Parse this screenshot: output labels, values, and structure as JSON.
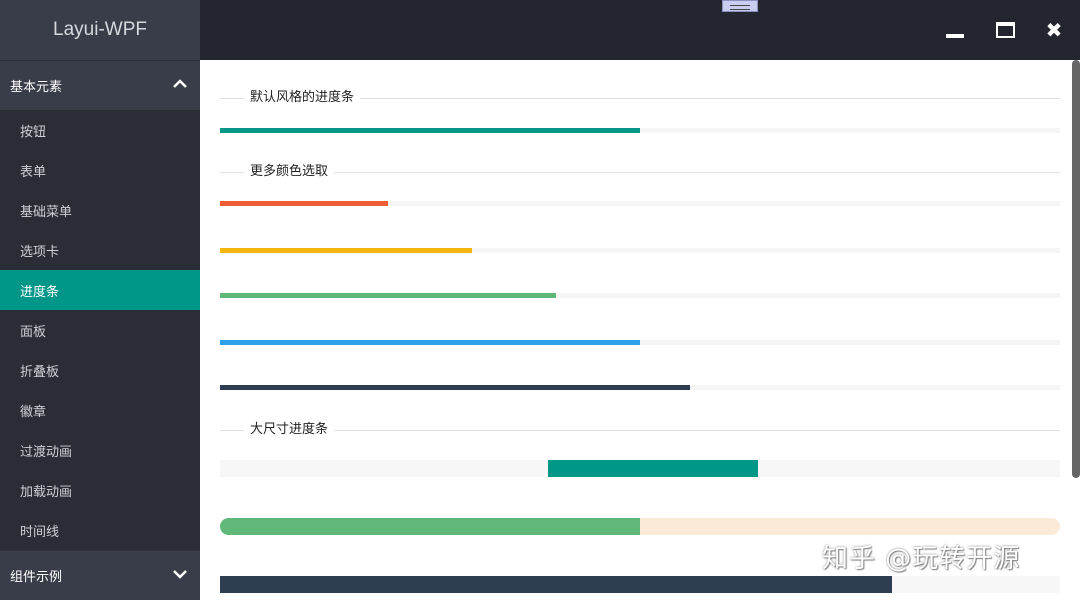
{
  "app": {
    "title": "Layui-WPF"
  },
  "sidebar": {
    "group": "基本元素",
    "items": [
      "按钮",
      "表单",
      "基础菜单",
      "选项卡",
      "进度条",
      "面板",
      "折叠板",
      "徽章",
      "过渡动画",
      "加载动画",
      "时间线"
    ],
    "active": "进度条",
    "group2": "组件示例"
  },
  "sections": {
    "default": "默认风格的进度条",
    "colors": "更多颜色选取",
    "large": "大尺寸进度条"
  },
  "progress": {
    "default": {
      "percent": 50,
      "color": "#009688"
    },
    "colors": [
      {
        "percent": 20,
        "color": "#ee5d36"
      },
      {
        "percent": 30,
        "color": "#f5b50f"
      },
      {
        "percent": 40,
        "color": "#5fb878"
      },
      {
        "percent": 50,
        "color": "#2fa1ea"
      },
      {
        "percent": 56,
        "color": "#2f3d52"
      }
    ],
    "large": [
      {
        "indeterminate": true,
        "segment_start": 39,
        "segment_end": 64,
        "color": "#009688",
        "track": "#f7f7f7"
      },
      {
        "percent": 50,
        "color": "#5fb878",
        "track": "#fbebd6",
        "rounded": true
      },
      {
        "percent": 80,
        "color": "#2f3d52",
        "track": "#f7f7f7"
      }
    ]
  },
  "watermark": "知乎 @玩转开源"
}
